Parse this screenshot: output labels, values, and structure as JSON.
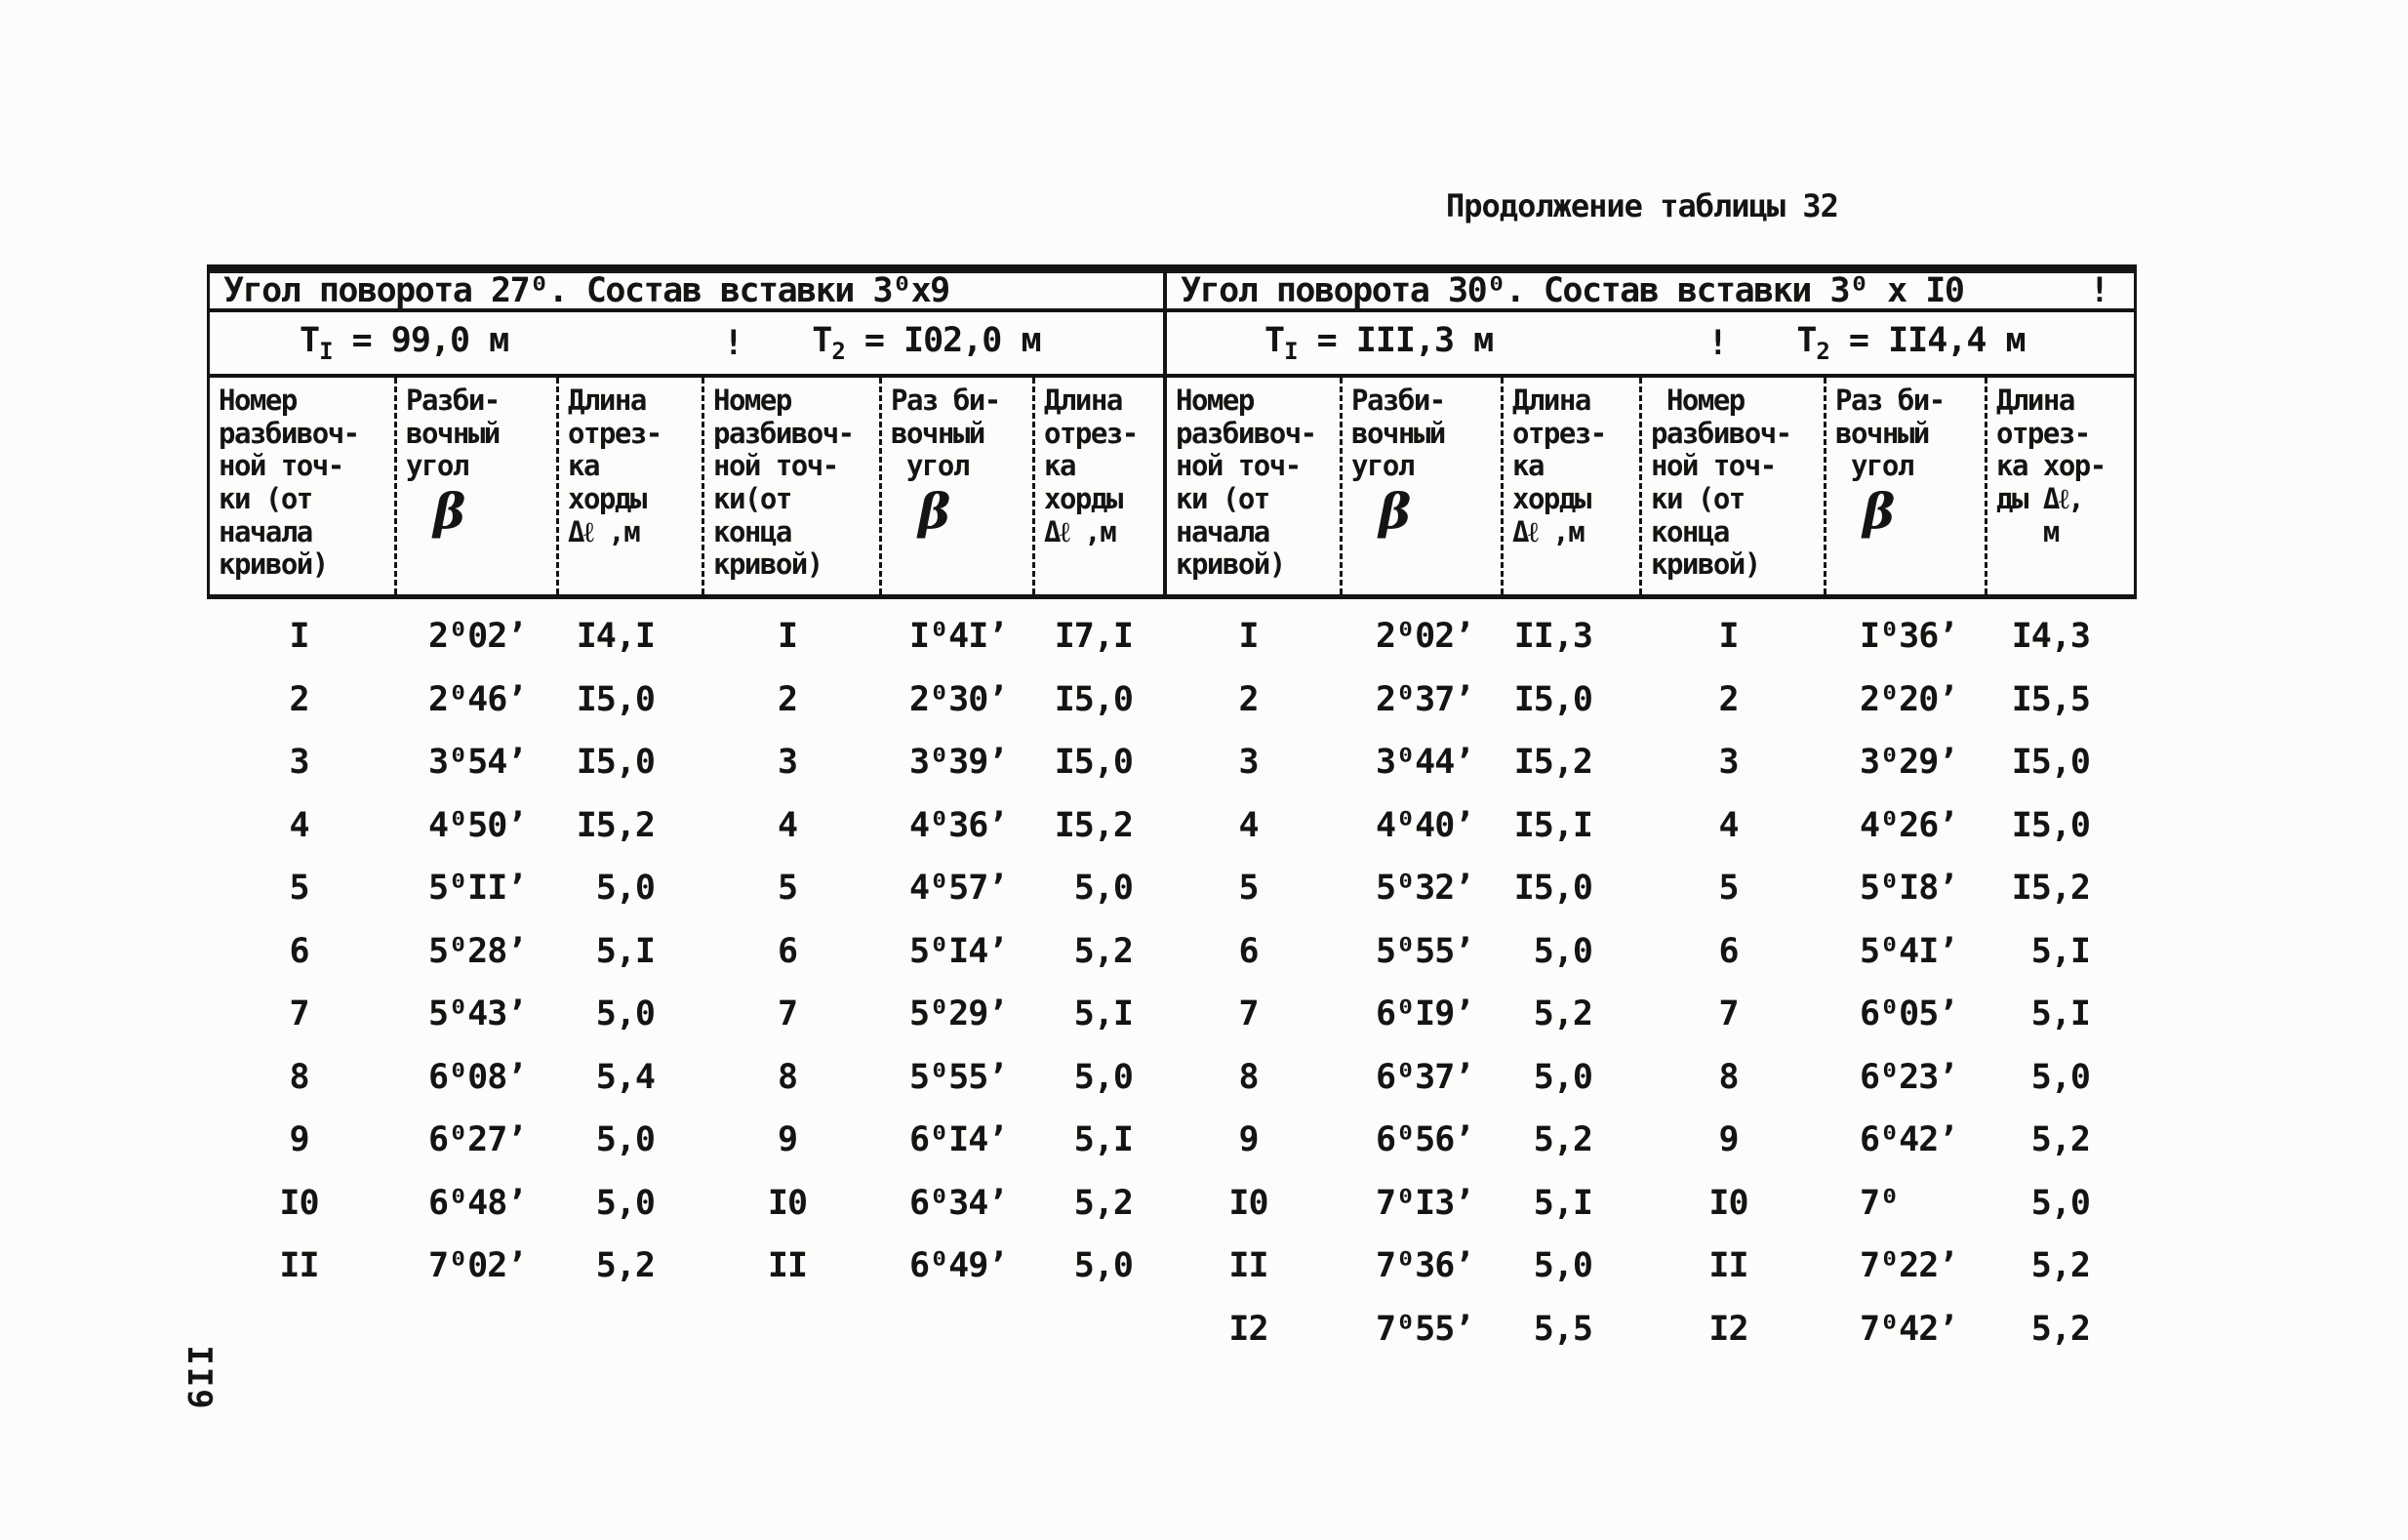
{
  "page": {
    "title": "Продолжение таблицы 32",
    "page_number": "II9"
  },
  "colors": {
    "ink": "#161412",
    "paper": "#fcfcfa"
  },
  "table": {
    "halves": [
      {
        "angle_title": "Угол поворота 27⁰. Состав вставки 3⁰х9",
        "trailing_mark": "",
        "t1_base": "Т",
        "t1_sub": "I",
        "t1_rest": " = 99,0 м",
        "t_sep": "!",
        "t2_base": "Т",
        "t2_sub": "2",
        "t2_rest": " = I02,0 м"
      },
      {
        "angle_title": "Угол поворота 30⁰. Состав вставки 3⁰ х I0",
        "trailing_mark": "!",
        "t1_base": "Т",
        "t1_sub": "I",
        "t1_rest": " = III,3 м",
        "t_sep": "!",
        "t2_base": "Т",
        "t2_sub": "2",
        "t2_rest": " = II4,4 м"
      }
    ],
    "columns": [
      {
        "text": "Номер\nразбивоч-\nной точ-\nки (от\nначала\nкривой)",
        "symbol": ""
      },
      {
        "text": "Разби-\nвочный\nугол",
        "symbol": "β"
      },
      {
        "text": "Длина\nотрез-\nка\nхорды\nΔℓ ,м",
        "symbol": ""
      },
      {
        "text": "Номер\nразбивоч-\nной точ-\nки(от\nконца\nкривой)",
        "symbol": ""
      },
      {
        "text": "Раз би-\nвочный\n угол",
        "symbol": "β"
      },
      {
        "text": "Длина\nотрез-\nка\nхорды\nΔℓ ,м",
        "symbol": ""
      },
      {
        "text": "Номер\nразбивоч-\nной точ-\nки (от\nначала\nкривой)",
        "symbol": ""
      },
      {
        "text": "Разби-\nвочный\nугол",
        "symbol": "β"
      },
      {
        "text": "Длина\nотрез-\nка\nхорды\nΔℓ ,м",
        "symbol": ""
      },
      {
        "text": " Номер\nразбивоч-\nной точ-\nки (от\nконца\nкривой)",
        "symbol": ""
      },
      {
        "text": "Раз би-\nвочный\n угол",
        "symbol": "β"
      },
      {
        "text": "Длина\nотрез-\nка хор-\nды Δℓ,\n   м",
        "symbol": ""
      }
    ],
    "groups": [
      {
        "rows": [
          [
            "I",
            "2⁰02’",
            "I4,I"
          ],
          [
            "2",
            "2⁰46’",
            "I5,0"
          ],
          [
            "3",
            "3⁰54’",
            "I5,0"
          ],
          [
            "4",
            "4⁰50’",
            "I5,2"
          ],
          [
            "5",
            "5⁰II’",
            "5,0"
          ],
          [
            "6",
            "5⁰28’",
            "5,I"
          ],
          [
            "7",
            "5⁰43’",
            "5,0"
          ],
          [
            "8",
            "6⁰08’",
            "5,4"
          ],
          [
            "9",
            "6⁰27’",
            "5,0"
          ],
          [
            "I0",
            "6⁰48’",
            "5,0"
          ],
          [
            "II",
            "7⁰02’",
            "5,2"
          ]
        ]
      },
      {
        "rows": [
          [
            "I",
            "I⁰4I’",
            "I7,I"
          ],
          [
            "2",
            "2⁰30’",
            "I5,0"
          ],
          [
            "3",
            "3⁰39’",
            "I5,0"
          ],
          [
            "4",
            "4⁰36’",
            "I5,2"
          ],
          [
            "5",
            "4⁰57’",
            "5,0"
          ],
          [
            "6",
            "5⁰I4’",
            "5,2"
          ],
          [
            "7",
            "5⁰29’",
            "5,I"
          ],
          [
            "8",
            "5⁰55’",
            "5,0"
          ],
          [
            "9",
            "6⁰I4’",
            "5,I"
          ],
          [
            "I0",
            "6⁰34’",
            "5,2"
          ],
          [
            "II",
            "6⁰49’",
            "5,0"
          ]
        ]
      },
      {
        "rows": [
          [
            "I",
            "2⁰02’",
            "II,3"
          ],
          [
            "2",
            "2⁰37’",
            "I5,0"
          ],
          [
            "3",
            "3⁰44’",
            "I5,2"
          ],
          [
            "4",
            "4⁰40’",
            "I5,I"
          ],
          [
            "5",
            "5⁰32’",
            "I5,0"
          ],
          [
            "6",
            "5⁰55’",
            "5,0"
          ],
          [
            "7",
            "6⁰I9’",
            "5,2"
          ],
          [
            "8",
            "6⁰37’",
            "5,0"
          ],
          [
            "9",
            "6⁰56’",
            "5,2"
          ],
          [
            "I0",
            "7⁰I3’",
            "5,I"
          ],
          [
            "II",
            "7⁰36’",
            "5,0"
          ],
          [
            "I2",
            "7⁰55’",
            "5,5"
          ]
        ]
      },
      {
        "rows": [
          [
            "I",
            "I⁰36’",
            "I4,3"
          ],
          [
            "2",
            "2⁰20’",
            "I5,5"
          ],
          [
            "3",
            "3⁰29’",
            "I5,0"
          ],
          [
            "4",
            "4⁰26’",
            "I5,0"
          ],
          [
            "5",
            "5⁰I8’",
            "I5,2"
          ],
          [
            "6",
            "5⁰4I’",
            "5,I"
          ],
          [
            "7",
            "6⁰05’",
            "5,I"
          ],
          [
            "8",
            "6⁰23’",
            "5,0"
          ],
          [
            "9",
            "6⁰42’",
            "5,2"
          ],
          [
            "I0",
            "7⁰",
            "5,0"
          ],
          [
            "II",
            "7⁰22’",
            "5,2"
          ],
          [
            "I2",
            "7⁰42’",
            "5,2"
          ]
        ]
      }
    ]
  }
}
